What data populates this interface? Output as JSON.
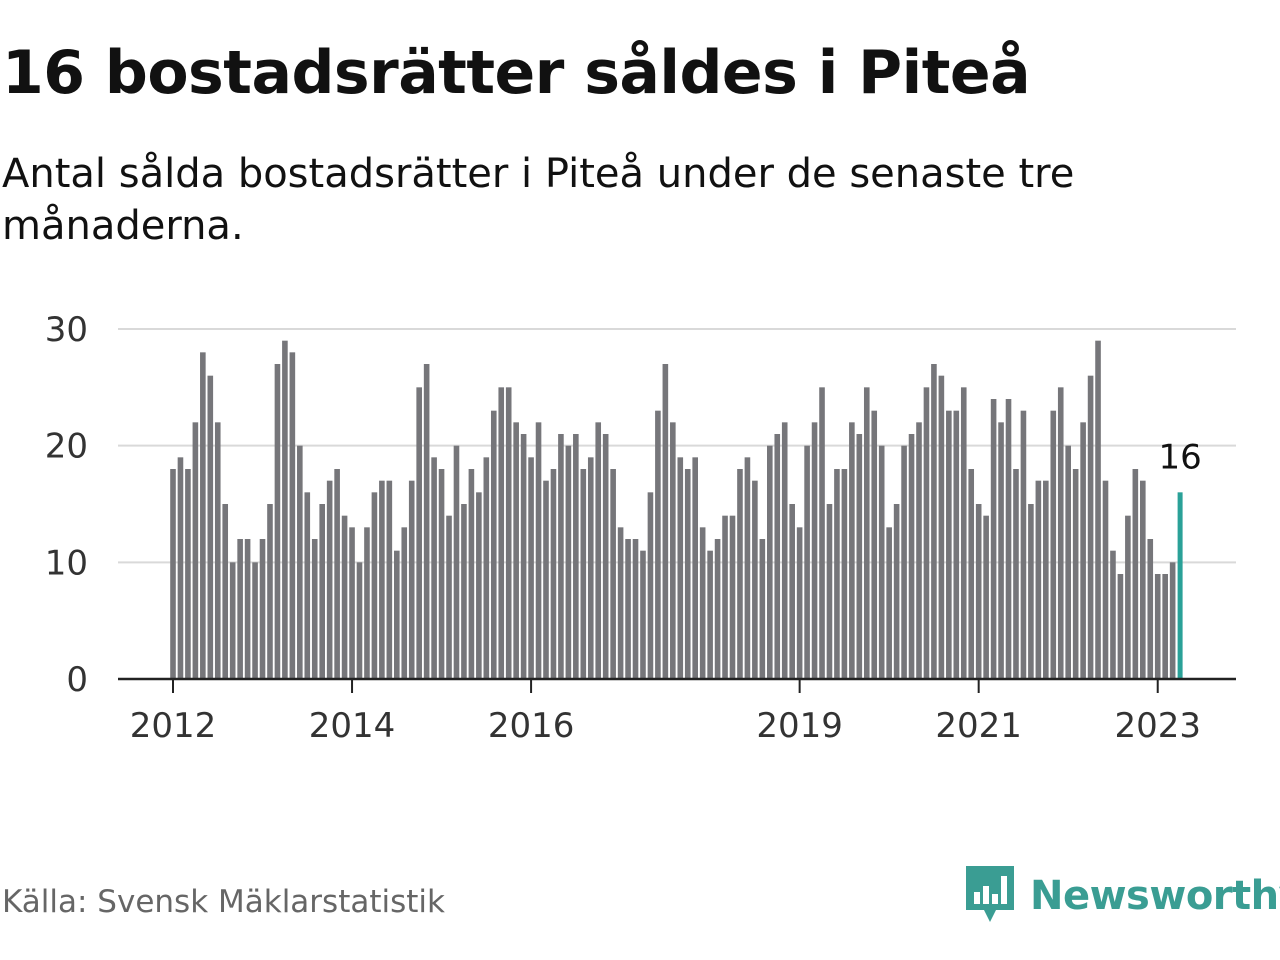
{
  "header": {
    "title": "16 bostadsrätter såldes i Piteå",
    "subtitle": "Antal sålda bostadsrätter i Piteå under de senaste tre månaderna."
  },
  "footer": {
    "source": "Källa: Svensk Mäklarstatistik",
    "brand": "Newsworthy"
  },
  "colors": {
    "bar": "#76767a",
    "highlight": "#2aa198",
    "grid": "#d9d9d9",
    "axis": "#222222",
    "brand": "#3a9d93"
  },
  "icons": {
    "brand_logo": "bar-chart-speech-bubble-icon"
  },
  "chart_data": {
    "type": "bar",
    "title": "16 bostadsrätter såldes i Piteå",
    "subtitle": "Antal sålda bostadsrätter i Piteå under de senaste tre månaderna.",
    "x_start": "2012-01",
    "x_unit": "month",
    "values": [
      18,
      19,
      18,
      22,
      28,
      26,
      22,
      15,
      10,
      12,
      12,
      10,
      12,
      15,
      27,
      29,
      28,
      20,
      16,
      12,
      15,
      17,
      18,
      14,
      13,
      10,
      13,
      16,
      17,
      17,
      11,
      13,
      17,
      25,
      27,
      19,
      18,
      14,
      20,
      15,
      18,
      16,
      19,
      23,
      25,
      25,
      22,
      21,
      19,
      22,
      17,
      18,
      21,
      20,
      21,
      18,
      19,
      22,
      21,
      18,
      13,
      12,
      12,
      11,
      16,
      23,
      27,
      22,
      19,
      18,
      19,
      13,
      11,
      12,
      14,
      14,
      18,
      19,
      17,
      12,
      20,
      21,
      22,
      15,
      13,
      20,
      22,
      25,
      15,
      18,
      18,
      22,
      21,
      25,
      23,
      20,
      13,
      15,
      20,
      21,
      22,
      25,
      27,
      26,
      23,
      23,
      25,
      18,
      15,
      14,
      24,
      22,
      24,
      18,
      23,
      15,
      17,
      17,
      23,
      25,
      20,
      18,
      22,
      26,
      29,
      17,
      11,
      9,
      14,
      18,
      17,
      12,
      9,
      9,
      10,
      16
    ],
    "highlight_last": true,
    "last_value_label": "16",
    "xticks": [
      {
        "label": "2012",
        "date": "2012-01"
      },
      {
        "label": "2014",
        "date": "2014-01"
      },
      {
        "label": "2016",
        "date": "2016-01"
      },
      {
        "label": "2019",
        "date": "2019-01"
      },
      {
        "label": "2021",
        "date": "2021-01"
      },
      {
        "label": "2023",
        "date": "2023-01"
      }
    ],
    "yticks": [
      0,
      10,
      20,
      30
    ],
    "ylim": [
      0,
      30
    ],
    "grid": true,
    "legend": "none"
  }
}
